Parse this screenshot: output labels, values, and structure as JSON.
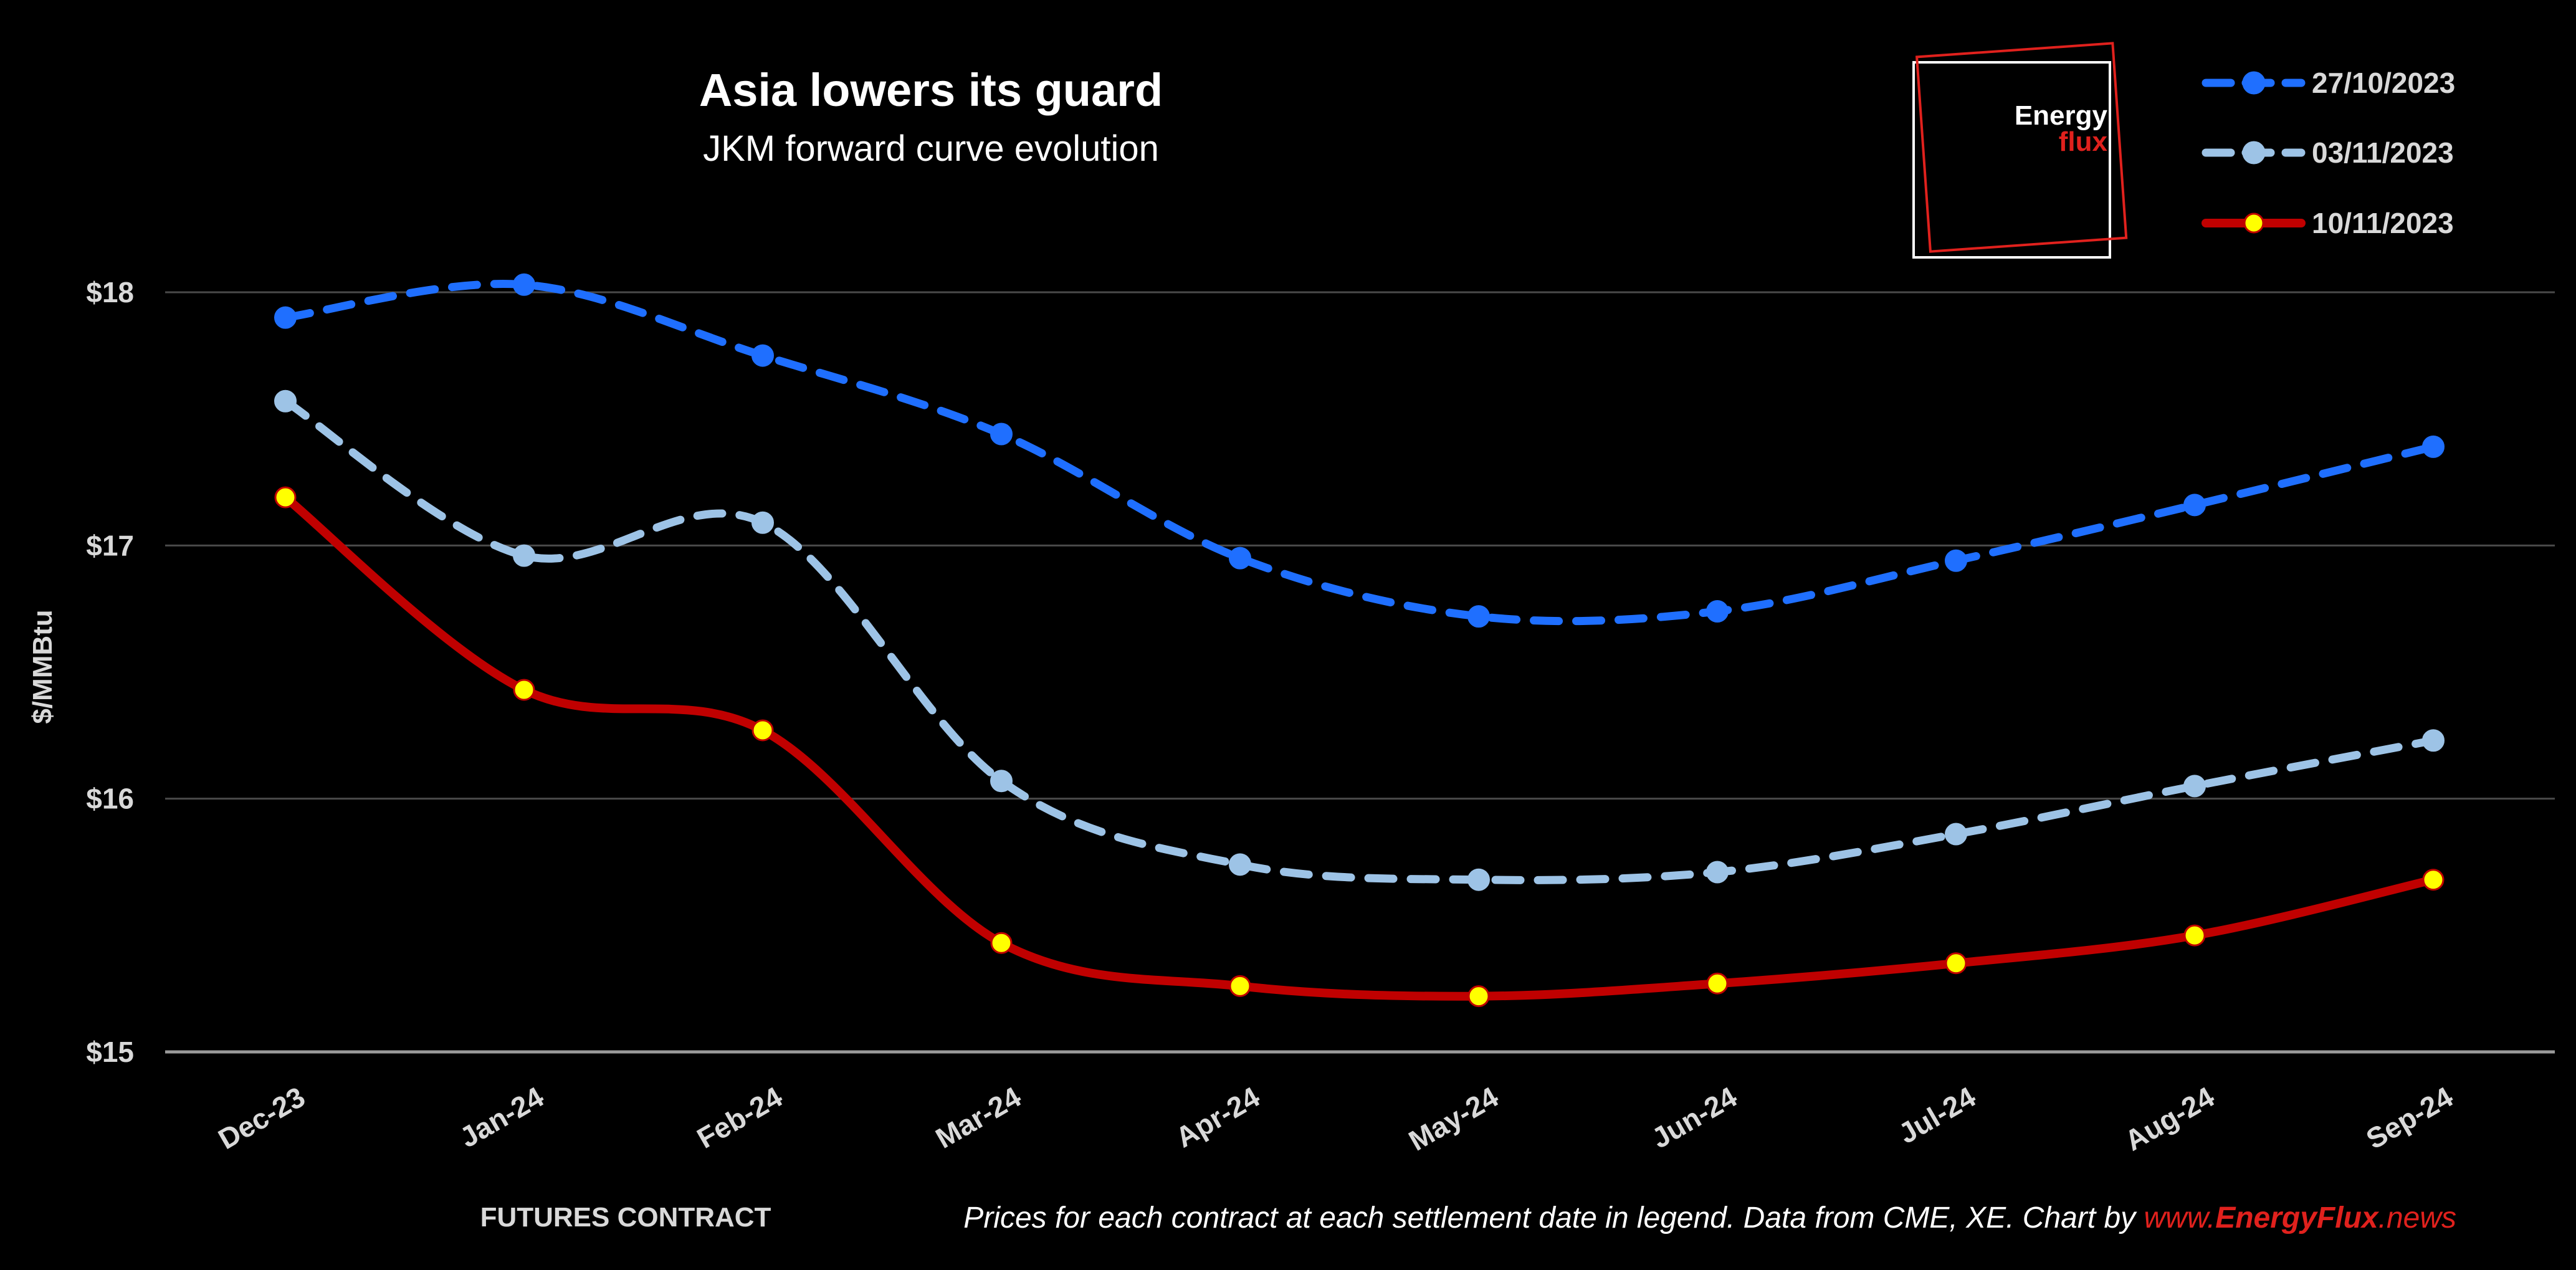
{
  "chart_data": {
    "type": "line",
    "title": "Asia lowers its guard",
    "subtitle": "JKM forward curve evolution",
    "xlabel": "FUTURES CONTRACT",
    "ylabel": "$/MMBtu",
    "categories": [
      "Dec-23",
      "Jan-24",
      "Feb-24",
      "Mar-24",
      "Apr-24",
      "May-24",
      "Jun-24",
      "Jul-24",
      "Aug-24",
      "Sep-24"
    ],
    "ylim": [
      15,
      18.9
    ],
    "yticks": [
      15,
      16,
      17,
      18
    ],
    "ytick_labels": [
      "$15",
      "$16",
      "$17",
      "$18"
    ],
    "grid": "horizontal",
    "legend_position": "top-right",
    "series": [
      {
        "name": "27/10/2023",
        "color": "#1f6fff",
        "style": "dashed",
        "marker_fill": "#1f6fff",
        "values": [
          17.9,
          18.03,
          17.75,
          17.44,
          16.95,
          16.72,
          16.74,
          16.94,
          17.16,
          17.39
        ]
      },
      {
        "name": "03/11/2023",
        "color": "#9dc3e6",
        "style": "dashed",
        "marker_fill": "#9dc3e6",
        "values": [
          17.57,
          16.96,
          17.09,
          16.07,
          15.74,
          15.68,
          15.71,
          15.86,
          16.05,
          16.23
        ]
      },
      {
        "name": "10/11/2023",
        "color": "#c00000",
        "style": "solid",
        "marker_fill": "#ffff00",
        "values": [
          17.19,
          16.43,
          16.27,
          15.43,
          15.26,
          15.22,
          15.27,
          15.35,
          15.46,
          15.68
        ]
      }
    ]
  },
  "footnote": {
    "text": "Prices for each contract at each settlement date in legend. Data from CME, XE. Chart by ",
    "link_prefix": "www.",
    "link_brand": "EnergyFlux",
    "link_suffix": ".news",
    "link_color": "#e0211d"
  },
  "logo": {
    "word1": "Energy",
    "word2": "flux"
  }
}
